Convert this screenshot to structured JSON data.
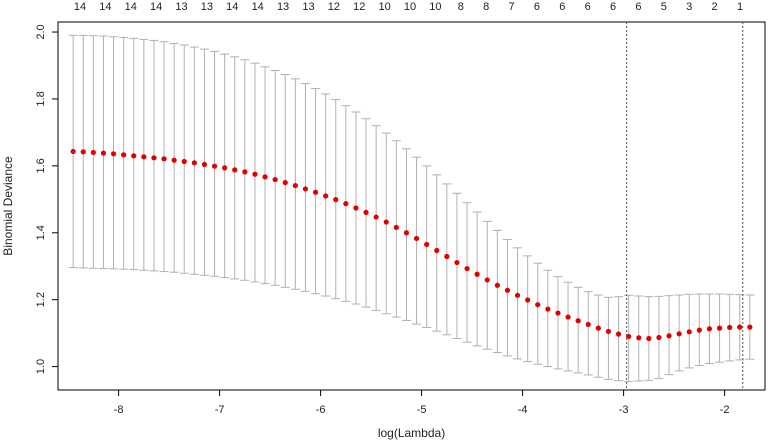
{
  "chart_data": {
    "type": "scatter",
    "xlabel": "log(Lambda)",
    "ylabel": "Binomial Deviance",
    "xlim": [
      -8.6,
      -1.6
    ],
    "ylim": [
      0.93,
      2.03
    ],
    "x_ticks": [
      -8,
      -7,
      -6,
      -5,
      -4,
      -3,
      -2
    ],
    "x_tick_labels": [
      "-8",
      "-7",
      "-6",
      "-5",
      "-4",
      "-3",
      "-2"
    ],
    "y_ticks": [
      1.0,
      1.2,
      1.4,
      1.6,
      1.8,
      2.0
    ],
    "y_tick_labels": [
      "1.0",
      "1.2",
      "1.4",
      "1.6",
      "1.8",
      "2.0"
    ],
    "top_axis_labels": [
      "14",
      "14",
      "14",
      "14",
      "13",
      "13",
      "14",
      "14",
      "13",
      "13",
      "12",
      "12",
      "10",
      "10",
      "10",
      "8",
      "8",
      "7",
      "6",
      "6",
      "6",
      "6",
      "6",
      "5",
      "3",
      "2",
      "1"
    ],
    "vertical_reference_lines": [
      -2.97,
      -1.82
    ],
    "x_start": -8.45,
    "x_step": 0.1,
    "mean": [
      1.643,
      1.642,
      1.64,
      1.638,
      1.636,
      1.633,
      1.63,
      1.627,
      1.624,
      1.621,
      1.617,
      1.613,
      1.609,
      1.604,
      1.599,
      1.594,
      1.588,
      1.582,
      1.575,
      1.567,
      1.559,
      1.55,
      1.541,
      1.531,
      1.521,
      1.51,
      1.499,
      1.487,
      1.474,
      1.461,
      1.447,
      1.432,
      1.416,
      1.4,
      1.383,
      1.365,
      1.347,
      1.329,
      1.311,
      1.293,
      1.276,
      1.259,
      1.243,
      1.228,
      1.213,
      1.199,
      1.185,
      1.172,
      1.16,
      1.148,
      1.137,
      1.126,
      1.115,
      1.105,
      1.097,
      1.09,
      1.086,
      1.084,
      1.087,
      1.092,
      1.098,
      1.104,
      1.109,
      1.113,
      1.115,
      1.117,
      1.118,
      1.118
    ],
    "upper": [
      1.99,
      1.99,
      1.989,
      1.988,
      1.986,
      1.984,
      1.981,
      1.978,
      1.975,
      1.971,
      1.966,
      1.961,
      1.955,
      1.949,
      1.942,
      1.934,
      1.926,
      1.917,
      1.907,
      1.896,
      1.885,
      1.873,
      1.86,
      1.846,
      1.831,
      1.815,
      1.798,
      1.78,
      1.761,
      1.741,
      1.72,
      1.698,
      1.675,
      1.651,
      1.626,
      1.6,
      1.573,
      1.546,
      1.518,
      1.49,
      1.462,
      1.434,
      1.407,
      1.38,
      1.355,
      1.331,
      1.309,
      1.288,
      1.269,
      1.252,
      1.237,
      1.224,
      1.214,
      1.207,
      1.209,
      1.213,
      1.211,
      1.209,
      1.21,
      1.212,
      1.214,
      1.216,
      1.217,
      1.217,
      1.217,
      1.216,
      1.215,
      1.214
    ],
    "lower": [
      1.296,
      1.295,
      1.294,
      1.293,
      1.292,
      1.291,
      1.29,
      1.288,
      1.286,
      1.284,
      1.282,
      1.279,
      1.276,
      1.273,
      1.27,
      1.266,
      1.262,
      1.258,
      1.253,
      1.248,
      1.243,
      1.237,
      1.231,
      1.225,
      1.218,
      1.211,
      1.203,
      1.195,
      1.187,
      1.178,
      1.168,
      1.158,
      1.148,
      1.138,
      1.127,
      1.117,
      1.106,
      1.095,
      1.084,
      1.073,
      1.062,
      1.052,
      1.042,
      1.032,
      1.023,
      1.015,
      1.007,
      1.0,
      0.993,
      0.987,
      0.981,
      0.975,
      0.968,
      0.962,
      0.958,
      0.955,
      0.957,
      0.959,
      0.964,
      0.976,
      0.987,
      0.996,
      1.003,
      1.009,
      1.013,
      1.017,
      1.02,
      1.022
    ],
    "point_color": "#e00000",
    "errorbar_color": "#b0b0b0",
    "refline_color": "#555555",
    "grid": false
  }
}
